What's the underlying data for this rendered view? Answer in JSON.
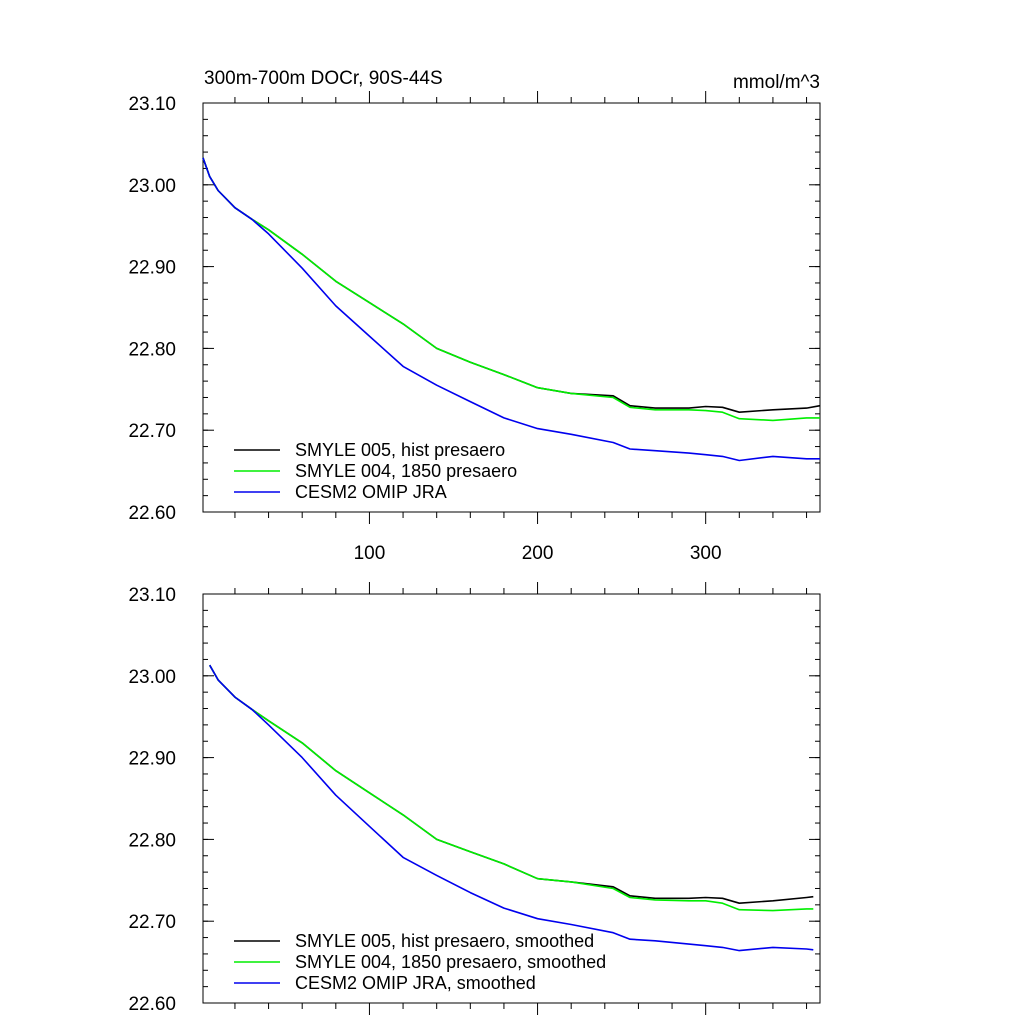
{
  "chart_data": [
    {
      "type": "line",
      "title": "300m-700m DOCr, 90S-44S",
      "units": "mmol/m^3",
      "xlim": [
        1,
        368
      ],
      "ylim": [
        22.6,
        23.1
      ],
      "xticks": [
        100,
        200,
        300
      ],
      "xtick_labels": [
        "100",
        "200",
        "300"
      ],
      "yticks": [
        22.6,
        22.7,
        22.8,
        22.9,
        23.0,
        23.1
      ],
      "ytick_labels": [
        "22.60",
        "22.70",
        "22.80",
        "22.90",
        "23.00",
        "23.10"
      ],
      "legend_position": "bottom-left",
      "series": [
        {
          "name": "SMYLE 005, hist presaero",
          "color": "#000000",
          "x": [
            1,
            5,
            10,
            20,
            30,
            40,
            60,
            80,
            100,
            120,
            140,
            160,
            180,
            200,
            220,
            245,
            255,
            270,
            290,
            300,
            310,
            320,
            340,
            360,
            368
          ],
          "y": [
            23.033,
            23.01,
            22.993,
            22.972,
            22.958,
            22.945,
            22.915,
            22.882,
            22.856,
            22.83,
            22.8,
            22.783,
            22.768,
            22.752,
            22.745,
            22.742,
            22.73,
            22.727,
            22.727,
            22.729,
            22.728,
            22.722,
            22.725,
            22.727,
            22.73
          ]
        },
        {
          "name": "SMYLE 004, 1850 presaero",
          "color": "#00ee00",
          "x": [
            1,
            5,
            10,
            20,
            30,
            40,
            60,
            80,
            100,
            120,
            140,
            160,
            180,
            200,
            220,
            245,
            255,
            270,
            290,
            300,
            310,
            320,
            340,
            360,
            368
          ],
          "y": [
            23.033,
            23.01,
            22.993,
            22.972,
            22.958,
            22.945,
            22.915,
            22.882,
            22.856,
            22.83,
            22.8,
            22.783,
            22.768,
            22.752,
            22.745,
            22.74,
            22.728,
            22.725,
            22.725,
            22.724,
            22.722,
            22.714,
            22.712,
            22.715,
            22.715
          ]
        },
        {
          "name": "CESM2 OMIP JRA",
          "color": "#0000ee",
          "x": [
            1,
            5,
            10,
            20,
            30,
            40,
            60,
            80,
            100,
            120,
            140,
            160,
            180,
            200,
            220,
            245,
            255,
            270,
            290,
            300,
            310,
            320,
            340,
            360,
            368
          ],
          "y": [
            23.033,
            23.01,
            22.993,
            22.972,
            22.958,
            22.94,
            22.898,
            22.852,
            22.815,
            22.778,
            22.755,
            22.735,
            22.715,
            22.702,
            22.695,
            22.685,
            22.677,
            22.675,
            22.672,
            22.67,
            22.668,
            22.663,
            22.668,
            22.665,
            22.665
          ]
        }
      ]
    },
    {
      "type": "line",
      "title": "",
      "units": "",
      "xlim": [
        1,
        368
      ],
      "ylim": [
        22.6,
        23.1
      ],
      "xticks": [
        100,
        200,
        300
      ],
      "xtick_labels": [],
      "yticks": [
        22.6,
        22.7,
        22.8,
        22.9,
        23.0,
        23.1
      ],
      "ytick_labels": [
        "22.60",
        "22.70",
        "22.80",
        "22.90",
        "23.00",
        "23.10"
      ],
      "legend_position": "bottom-left",
      "series": [
        {
          "name": "SMYLE 005, hist presaero, smoothed",
          "color": "#000000",
          "x": [
            5,
            10,
            20,
            30,
            40,
            60,
            80,
            100,
            120,
            140,
            160,
            180,
            200,
            220,
            245,
            255,
            270,
            290,
            300,
            310,
            320,
            340,
            360,
            364
          ],
          "y": [
            23.013,
            22.995,
            22.974,
            22.959,
            22.945,
            22.918,
            22.884,
            22.857,
            22.83,
            22.8,
            22.785,
            22.77,
            22.752,
            22.748,
            22.742,
            22.731,
            22.728,
            22.728,
            22.729,
            22.728,
            22.722,
            22.725,
            22.729,
            22.73
          ]
        },
        {
          "name": "SMYLE 004, 1850 presaero, smoothed",
          "color": "#00ee00",
          "x": [
            5,
            10,
            20,
            30,
            40,
            60,
            80,
            100,
            120,
            140,
            160,
            180,
            200,
            220,
            245,
            255,
            270,
            290,
            300,
            310,
            320,
            340,
            360,
            364
          ],
          "y": [
            23.013,
            22.995,
            22.974,
            22.959,
            22.945,
            22.918,
            22.884,
            22.857,
            22.83,
            22.8,
            22.785,
            22.77,
            22.752,
            22.748,
            22.74,
            22.729,
            22.726,
            22.725,
            22.725,
            22.722,
            22.714,
            22.713,
            22.715,
            22.715
          ]
        },
        {
          "name": "CESM2 OMIP JRA, smoothed",
          "color": "#0000ee",
          "x": [
            5,
            10,
            20,
            30,
            40,
            60,
            80,
            100,
            120,
            140,
            160,
            180,
            200,
            220,
            245,
            255,
            270,
            290,
            300,
            310,
            320,
            340,
            360,
            364
          ],
          "y": [
            23.013,
            22.995,
            22.974,
            22.959,
            22.94,
            22.9,
            22.854,
            22.816,
            22.778,
            22.756,
            22.735,
            22.716,
            22.703,
            22.696,
            22.686,
            22.678,
            22.676,
            22.672,
            22.67,
            22.668,
            22.664,
            22.668,
            22.666,
            22.665
          ]
        }
      ]
    }
  ]
}
